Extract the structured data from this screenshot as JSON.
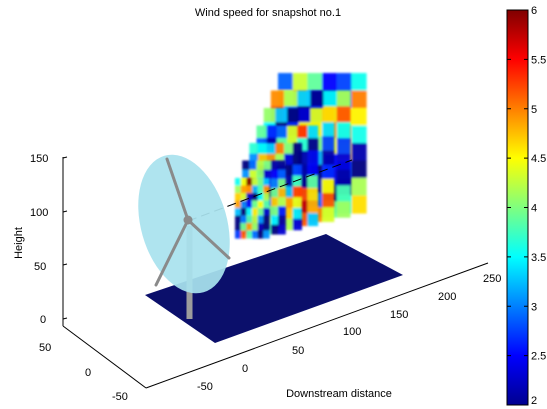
{
  "chart_data": {
    "type": "3d-scene",
    "title": "Wind speed for snapshot no.1",
    "xlabel": "Downstream distance",
    "ylabel": "",
    "zlabel": "Height",
    "x_ticks": [
      -50,
      0,
      50,
      100,
      150,
      200,
      250
    ],
    "y_ticks": [
      50,
      0,
      -50
    ],
    "z_ticks": [
      0,
      50,
      100,
      150
    ],
    "colorbar": {
      "min": 2,
      "max": 6,
      "ticks": [
        2,
        2.5,
        3,
        3.5,
        4,
        4.5,
        5,
        5.5,
        6
      ],
      "tick_labels": [
        "2",
        "2.5",
        "3",
        "3.5",
        "4",
        "4.5",
        "5",
        "5.5",
        "6"
      ],
      "colormap": "jet"
    },
    "ground_color": "#0b0f6b",
    "rotor_color": "#a9e2ee",
    "tower_color": "#9c9c9c",
    "snapshot_planes": [
      {
        "downstream": 50
      },
      {
        "downstream": 75
      },
      {
        "downstream": 100
      },
      {
        "downstream": 125
      },
      {
        "downstream": 150
      },
      {
        "downstream": 175
      },
      {
        "downstream": 200
      }
    ]
  }
}
